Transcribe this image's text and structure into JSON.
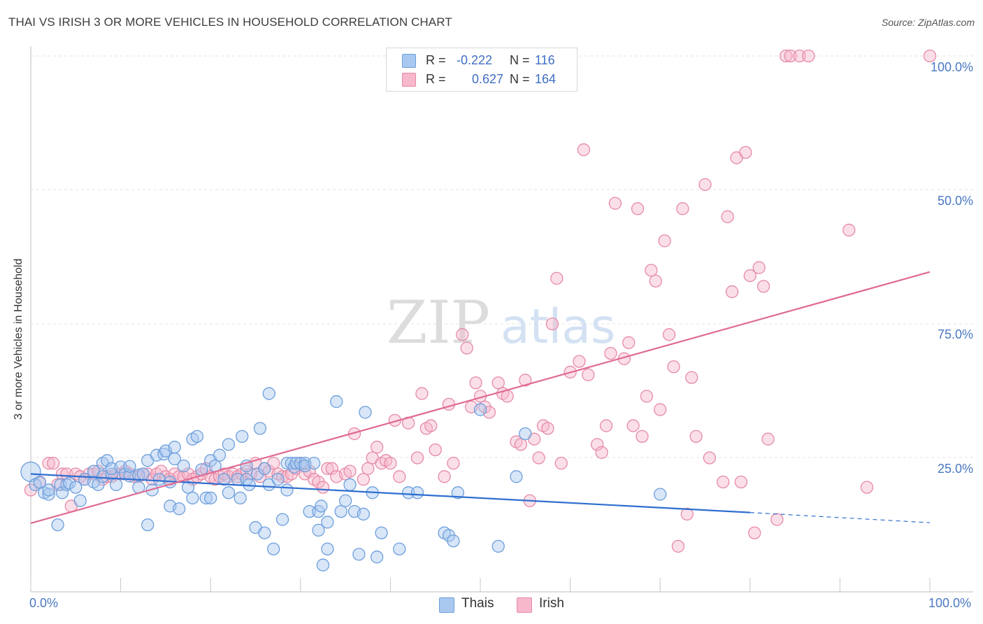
{
  "title": "THAI VS IRISH 3 OR MORE VEHICLES IN HOUSEHOLD CORRELATION CHART",
  "source": "Source: ZipAtlas.com",
  "watermark": {
    "zip": "ZIP",
    "atlas": "atlas"
  },
  "legend": {
    "r_label": "R =",
    "n_label": "N =",
    "thais": {
      "r": "-0.222",
      "n": "116",
      "color": "#a9c8f0",
      "stroke": "#6d9fdc"
    },
    "irish": {
      "r": "0.627",
      "n": "164",
      "color": "#f7b8cc",
      "stroke": "#e68aa6"
    }
  },
  "bottom_legend": {
    "thais": "Thais",
    "irish": "Irish"
  },
  "chart_data": {
    "type": "scatter",
    "ylabel": "3 or more Vehicles in Household",
    "xlim": [
      0,
      100
    ],
    "ylim": [
      0,
      100
    ],
    "x_ticks": [
      "0.0%",
      "100.0%"
    ],
    "y_ticks": [
      "25.0%",
      "50.0%",
      "75.0%",
      "100.0%"
    ],
    "y_tick_values": [
      25,
      50,
      75,
      100
    ],
    "grid": "horizontal dashed",
    "legend_position": "top-center",
    "series": [
      {
        "name": "Thais",
        "color": "#6d9fdc",
        "fill": "#a9c8f0",
        "trend": {
          "x0": 0,
          "y0": 22.0,
          "x1": 80,
          "y1": 14.8,
          "dash_to": 100,
          "dash_y": 12.9,
          "color": "#2f6fd0"
        },
        "points": [
          [
            0,
            22.4
          ],
          [
            0.5,
            20
          ],
          [
            1,
            20.4
          ],
          [
            1.5,
            18.5
          ],
          [
            2,
            18.2
          ],
          [
            2,
            19
          ],
          [
            3,
            12.5
          ],
          [
            3.3,
            20
          ],
          [
            3.5,
            18.5
          ],
          [
            4,
            20
          ],
          [
            4.3,
            20.3
          ],
          [
            5,
            19.5
          ],
          [
            5.5,
            17
          ],
          [
            6,
            21
          ],
          [
            7,
            20.5
          ],
          [
            7.5,
            20
          ],
          [
            7,
            22.5
          ],
          [
            8,
            21.5
          ],
          [
            8,
            24
          ],
          [
            8.5,
            24.5
          ],
          [
            9,
            22
          ],
          [
            9.5,
            20
          ],
          [
            9,
            23
          ],
          [
            10,
            23.3
          ],
          [
            10.5,
            22
          ],
          [
            11,
            21.6
          ],
          [
            11,
            23.4
          ],
          [
            12,
            21.8
          ],
          [
            12.5,
            22
          ],
          [
            12,
            19.5
          ],
          [
            13,
            12.5
          ],
          [
            13,
            24.5
          ],
          [
            13.5,
            19
          ],
          [
            14,
            25.5
          ],
          [
            14.3,
            21
          ],
          [
            14.8,
            25.7
          ],
          [
            15,
            26.3
          ],
          [
            15.5,
            20.5
          ],
          [
            15.5,
            16
          ],
          [
            16,
            24.8
          ],
          [
            16,
            27
          ],
          [
            16.5,
            15.5
          ],
          [
            17,
            23.5
          ],
          [
            17.5,
            19.5
          ],
          [
            18,
            28.5
          ],
          [
            18,
            17.5
          ],
          [
            18.5,
            29
          ],
          [
            19,
            22.8
          ],
          [
            19.5,
            17.5
          ],
          [
            20,
            17.5
          ],
          [
            20,
            24.5
          ],
          [
            20.5,
            23.5
          ],
          [
            21,
            25.5
          ],
          [
            21.5,
            21
          ],
          [
            22,
            18.5
          ],
          [
            22,
            27.5
          ],
          [
            23,
            21
          ],
          [
            23.3,
            17.5
          ],
          [
            23.5,
            29
          ],
          [
            24,
            23.5
          ],
          [
            24,
            21
          ],
          [
            24.3,
            20
          ],
          [
            25,
            12
          ],
          [
            25.2,
            22
          ],
          [
            25.5,
            30.5
          ],
          [
            26,
            11
          ],
          [
            26,
            23
          ],
          [
            26.5,
            20
          ],
          [
            26.5,
            37
          ],
          [
            27,
            8
          ],
          [
            27.5,
            21
          ],
          [
            28,
            13.5
          ],
          [
            28.5,
            24
          ],
          [
            28.5,
            19
          ],
          [
            29,
            24
          ],
          [
            29.3,
            23.3
          ],
          [
            29.5,
            24
          ],
          [
            30,
            24
          ],
          [
            30.5,
            24
          ],
          [
            30.5,
            23.5
          ],
          [
            31,
            15
          ],
          [
            31.5,
            24
          ],
          [
            32,
            11.5
          ],
          [
            32,
            15
          ],
          [
            32.3,
            16
          ],
          [
            32.5,
            5
          ],
          [
            33,
            8
          ],
          [
            33,
            13
          ],
          [
            34,
            35.5
          ],
          [
            34.5,
            15
          ],
          [
            35,
            17
          ],
          [
            35.5,
            20
          ],
          [
            36,
            15
          ],
          [
            36.5,
            7
          ],
          [
            37,
            14.5
          ],
          [
            37.2,
            33.5
          ],
          [
            38,
            18.5
          ],
          [
            38.5,
            6.5
          ],
          [
            39,
            11
          ],
          [
            41,
            8
          ],
          [
            42,
            18.5
          ],
          [
            43,
            18.5
          ],
          [
            46,
            11
          ],
          [
            46.5,
            10.5
          ],
          [
            47,
            9.5
          ],
          [
            47.5,
            18.5
          ],
          [
            50,
            34
          ],
          [
            52,
            8.5
          ],
          [
            54,
            21.5
          ],
          [
            55,
            29.5
          ],
          [
            70,
            18.2
          ]
        ]
      },
      {
        "name": "Irish",
        "color": "#e68aa6",
        "fill": "#f7b8cc",
        "trend": {
          "x0": 0,
          "y0": 12.8,
          "x1": 100,
          "y1": 59.7,
          "color": "#e06a92"
        },
        "points": [
          [
            0,
            19
          ],
          [
            1,
            20.5
          ],
          [
            2,
            24
          ],
          [
            2.5,
            24
          ],
          [
            3,
            20
          ],
          [
            3.5,
            22
          ],
          [
            4,
            22
          ],
          [
            4.5,
            16
          ],
          [
            5,
            22
          ],
          [
            5.5,
            21.5
          ],
          [
            6,
            21
          ],
          [
            6.5,
            22
          ],
          [
            7,
            22
          ],
          [
            7.5,
            22.5
          ],
          [
            8,
            21
          ],
          [
            8.5,
            21.5
          ],
          [
            9,
            21.5
          ],
          [
            9.5,
            22
          ],
          [
            10,
            22
          ],
          [
            10.5,
            22.5
          ],
          [
            11,
            22
          ],
          [
            11.5,
            21.5
          ],
          [
            12,
            21.5
          ],
          [
            12.5,
            22
          ],
          [
            13,
            22
          ],
          [
            13.5,
            21
          ],
          [
            14,
            22
          ],
          [
            14.5,
            22.5
          ],
          [
            15,
            21.5
          ],
          [
            15.5,
            21
          ],
          [
            16,
            22
          ],
          [
            16.5,
            21.5
          ],
          [
            17,
            21.5
          ],
          [
            17.5,
            22
          ],
          [
            18,
            21
          ],
          [
            18.5,
            21.5
          ],
          [
            19,
            22
          ],
          [
            19.5,
            23
          ],
          [
            20,
            21.5
          ],
          [
            20.5,
            21
          ],
          [
            21,
            21.5
          ],
          [
            21.5,
            22
          ],
          [
            22,
            21.5
          ],
          [
            22.5,
            22
          ],
          [
            23,
            21.5
          ],
          [
            23.5,
            22
          ],
          [
            24,
            22.5
          ],
          [
            24.5,
            22
          ],
          [
            25,
            24
          ],
          [
            25.5,
            21.5
          ],
          [
            26,
            23
          ],
          [
            26.5,
            22.5
          ],
          [
            27,
            24
          ],
          [
            27.5,
            22
          ],
          [
            28,
            21.5
          ],
          [
            28.5,
            21.5
          ],
          [
            29,
            22
          ],
          [
            29.5,
            23
          ],
          [
            30,
            24
          ],
          [
            30.5,
            22
          ],
          [
            31,
            22.5
          ],
          [
            31.5,
            21
          ],
          [
            32,
            20.5
          ],
          [
            32.5,
            19.5
          ],
          [
            33,
            23
          ],
          [
            33.5,
            23
          ],
          [
            34,
            21.5
          ],
          [
            35,
            22
          ],
          [
            35.5,
            22.5
          ],
          [
            36,
            29.5
          ],
          [
            37,
            21
          ],
          [
            37.5,
            23
          ],
          [
            38,
            25
          ],
          [
            38.5,
            27
          ],
          [
            39,
            24
          ],
          [
            39.5,
            24.5
          ],
          [
            40,
            24
          ],
          [
            40.5,
            32
          ],
          [
            41,
            21.5
          ],
          [
            42,
            31.5
          ],
          [
            43,
            25
          ],
          [
            43.5,
            37
          ],
          [
            44,
            30.5
          ],
          [
            44.5,
            31
          ],
          [
            45,
            26.5
          ],
          [
            46,
            21.5
          ],
          [
            46.5,
            35
          ],
          [
            47,
            24
          ],
          [
            48,
            48
          ],
          [
            48.5,
            45.5
          ],
          [
            49,
            34.5
          ],
          [
            49.5,
            39
          ],
          [
            50,
            36.5
          ],
          [
            50.5,
            34.5
          ],
          [
            51,
            33.5
          ],
          [
            52,
            39
          ],
          [
            52.5,
            37
          ],
          [
            53,
            36.5
          ],
          [
            54,
            28
          ],
          [
            54.5,
            27.5
          ],
          [
            55,
            39.5
          ],
          [
            55.5,
            17
          ],
          [
            56,
            28.5
          ],
          [
            56.5,
            25
          ],
          [
            57,
            31
          ],
          [
            57.5,
            30.5
          ],
          [
            58,
            50
          ],
          [
            58.5,
            58.5
          ],
          [
            59,
            24
          ],
          [
            60,
            41
          ],
          [
            61,
            43
          ],
          [
            61.5,
            82.5
          ],
          [
            62,
            40.5
          ],
          [
            63,
            27.5
          ],
          [
            63.5,
            26
          ],
          [
            64,
            31
          ],
          [
            64.5,
            44.5
          ],
          [
            65,
            72.5
          ],
          [
            66,
            43.5
          ],
          [
            66.5,
            46.5
          ],
          [
            67,
            31
          ],
          [
            67.5,
            71.5
          ],
          [
            68,
            29
          ],
          [
            68.5,
            36.5
          ],
          [
            69,
            60
          ],
          [
            69.5,
            58
          ],
          [
            70,
            34
          ],
          [
            70.5,
            65.5
          ],
          [
            71,
            48
          ],
          [
            71.5,
            42
          ],
          [
            72,
            8.5
          ],
          [
            72.5,
            71.5
          ],
          [
            73,
            14.5
          ],
          [
            73.5,
            40
          ],
          [
            74,
            29
          ],
          [
            75,
            76
          ],
          [
            75.5,
            25
          ],
          [
            77,
            20.5
          ],
          [
            77.5,
            70
          ],
          [
            78,
            56
          ],
          [
            78.5,
            81
          ],
          [
            79,
            20.5
          ],
          [
            79.5,
            82
          ],
          [
            80,
            59
          ],
          [
            80.5,
            11
          ],
          [
            81,
            60.5
          ],
          [
            81.5,
            57
          ],
          [
            82,
            28.5
          ],
          [
            83,
            13.5
          ],
          [
            84,
            100
          ],
          [
            84.5,
            100
          ],
          [
            85.5,
            100
          ],
          [
            86.5,
            100
          ],
          [
            91,
            67.5
          ],
          [
            93,
            19.5
          ],
          [
            100,
            100
          ]
        ]
      }
    ]
  }
}
